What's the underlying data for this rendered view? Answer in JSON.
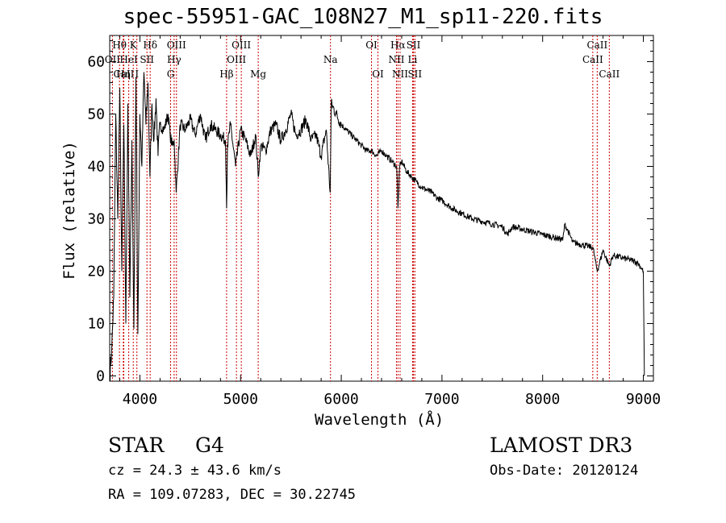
{
  "chart_data": {
    "type": "line",
    "title": "spec-55951-GAC_108N27_M1_sp11-220.fits",
    "xlabel": "Wavelength (Å)",
    "ylabel": "Flux (relative)",
    "xlim": [
      3700,
      9100
    ],
    "ylim": [
      -1,
      65
    ],
    "xticks": [
      4000,
      5000,
      6000,
      7000,
      8000,
      9000
    ],
    "yticks": [
      0,
      10,
      20,
      30,
      40,
      50,
      60
    ],
    "series": [
      {
        "name": "spectrum",
        "x": [
          3700,
          3720,
          3740,
          3760,
          3780,
          3800,
          3820,
          3840,
          3860,
          3880,
          3900,
          3920,
          3940,
          3960,
          3980,
          4000,
          4020,
          4040,
          4060,
          4080,
          4100,
          4120,
          4140,
          4160,
          4180,
          4200,
          4240,
          4280,
          4300,
          4320,
          4340,
          4360,
          4400,
          4450,
          4500,
          4550,
          4600,
          4650,
          4700,
          4750,
          4800,
          4850,
          4861,
          4870,
          4900,
          4950,
          5000,
          5050,
          5100,
          5150,
          5175,
          5200,
          5250,
          5300,
          5350,
          5400,
          5450,
          5500,
          5550,
          5600,
          5650,
          5700,
          5750,
          5800,
          5850,
          5890,
          5900,
          5950,
          6000,
          6050,
          6100,
          6150,
          6200,
          6250,
          6300,
          6350,
          6400,
          6450,
          6500,
          6550,
          6563,
          6580,
          6600,
          6650,
          6700,
          6750,
          6800,
          6850,
          6900,
          6950,
          7000,
          7100,
          7200,
          7300,
          7400,
          7500,
          7600,
          7650,
          7700,
          7800,
          7900,
          8000,
          8100,
          8200,
          8220,
          8300,
          8400,
          8500,
          8542,
          8600,
          8662,
          8700,
          8800,
          8900,
          8950,
          9000,
          9010
        ],
        "y": [
          0,
          5,
          15,
          50,
          30,
          55,
          20,
          48,
          10,
          52,
          15,
          45,
          9,
          57,
          8,
          50,
          40,
          58,
          48,
          56,
          38,
          52,
          45,
          53,
          42,
          48,
          47,
          50,
          46,
          44,
          45,
          35,
          48,
          47,
          49,
          46,
          50,
          45,
          48,
          47,
          46,
          45,
          32,
          44,
          48,
          40,
          47,
          45,
          42,
          46,
          38,
          44,
          43,
          47,
          48,
          45,
          47,
          50,
          46,
          47,
          49,
          45,
          46,
          42,
          47,
          35,
          52,
          50,
          48,
          47,
          46,
          45,
          44,
          43,
          43,
          42,
          43,
          42,
          41,
          40,
          32,
          40,
          41,
          39,
          38,
          37,
          36,
          35.5,
          35,
          34,
          33.5,
          32,
          31,
          30,
          29.5,
          29,
          28.5,
          27,
          28.5,
          28,
          27.5,
          27,
          26.5,
          26,
          29,
          25.5,
          25,
          24.5,
          20,
          24,
          21,
          23,
          22.5,
          22,
          21.5,
          20,
          0
        ]
      }
    ],
    "lines": [
      {
        "label": "Hθ",
        "x": 3797,
        "row": 0
      },
      {
        "label": "OII",
        "x": 3727,
        "row": 1
      },
      {
        "label": "CaII",
        "x": 3840,
        "row": 2
      },
      {
        "label": "Hη",
        "x": 3835,
        "row": 2
      },
      {
        "label": "K",
        "x": 3934,
        "row": 0
      },
      {
        "label": "HeI",
        "x": 3889,
        "row": 1
      },
      {
        "label": "I",
        "x": 3970,
        "row": 2
      },
      {
        "label": "Hδ",
        "x": 4102,
        "row": 0
      },
      {
        "label": "SII",
        "x": 4070,
        "row": 1
      },
      {
        "label": "OIII",
        "x": 4363,
        "row": 0
      },
      {
        "label": "Hγ",
        "x": 4340,
        "row": 1
      },
      {
        "label": "G",
        "x": 4305,
        "row": 2
      },
      {
        "label": "OIII",
        "x": 5007,
        "row": 0
      },
      {
        "label": "OIII",
        "x": 4959,
        "row": 1
      },
      {
        "label": "Hβ",
        "x": 4861,
        "row": 2
      },
      {
        "label": "Mg",
        "x": 5175,
        "row": 2
      },
      {
        "label": "Na",
        "x": 5893,
        "row": 1
      },
      {
        "label": "OI",
        "x": 6300,
        "row": 0
      },
      {
        "label": "OI",
        "x": 6364,
        "row": 2
      },
      {
        "label": "Hα",
        "x": 6563,
        "row": 0
      },
      {
        "label": "SII",
        "x": 6717,
        "row": 0
      },
      {
        "label": "NII",
        "x": 6548,
        "row": 1
      },
      {
        "label": "Li",
        "x": 6708,
        "row": 1
      },
      {
        "label": "NII",
        "x": 6584,
        "row": 2
      },
      {
        "label": "SII",
        "x": 6731,
        "row": 2
      },
      {
        "label": "CaII",
        "x": 8542,
        "row": 0
      },
      {
        "label": "CaII",
        "x": 8498,
        "row": 1
      },
      {
        "label": "CaII",
        "x": 8662,
        "row": 2
      }
    ]
  },
  "info": {
    "class": "STAR",
    "subclass": "G4",
    "survey": "LAMOST DR3",
    "cz": "cz = 24.3 ± 43.6 km/s",
    "obs_date": "Obs-Date: 20120124",
    "radec": "RA = 109.07283, DEC =  30.22745"
  },
  "colors": {
    "line_marker": "#cc0000",
    "spectrum": "#000000"
  }
}
